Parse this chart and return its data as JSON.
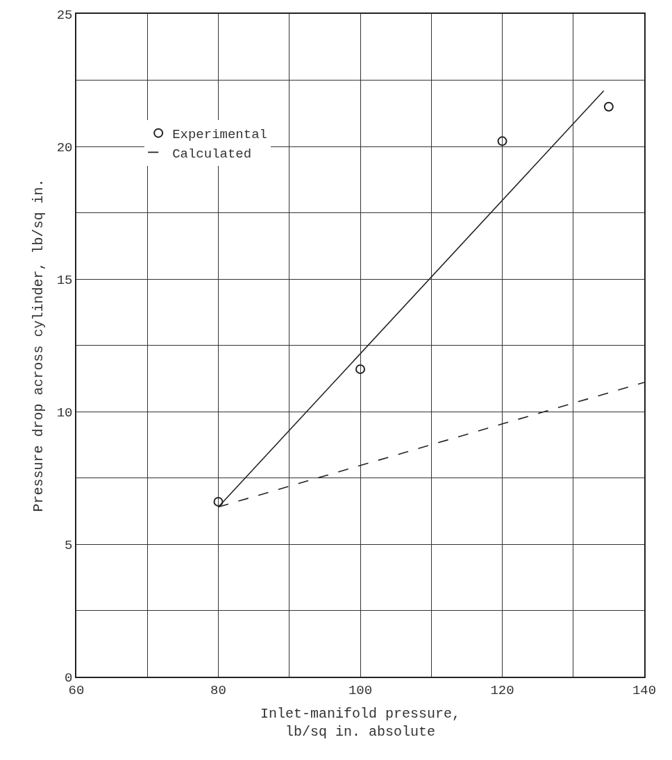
{
  "chart_data": {
    "type": "line",
    "xlabel": "Inlet-manifold pressure,\nlb/sq in. absolute",
    "ylabel": "Pressure drop across cylinder, lb/sq in.",
    "xlim": [
      60,
      140
    ],
    "xticks": [
      60,
      {
        "value": 70,
        "label": null
      },
      80,
      {
        "value": 90,
        "label": null
      },
      100,
      {
        "value": 110,
        "label": null
      },
      120,
      {
        "value": 130,
        "label": null
      },
      140
    ],
    "ylim": [
      0,
      25
    ],
    "yticks": [
      0,
      {
        "value": 2.5,
        "label": null
      },
      5,
      {
        "value": 7.5,
        "label": null
      },
      10,
      {
        "value": 12.5,
        "label": null
      },
      15,
      {
        "value": 17.5,
        "label": null
      },
      20,
      {
        "value": 22.5,
        "label": null
      },
      25
    ],
    "grid": true,
    "legend": "top left",
    "series": [
      {
        "name": "Experimental",
        "type": "scatter",
        "marker": "circle",
        "color": "#222222",
        "x": [
          80,
          100,
          120,
          135
        ],
        "values": [
          6.6,
          11.6,
          20.2,
          21.5
        ]
      },
      {
        "marker": "none",
        "line_style": "solid",
        "color": "#222222",
        "x": [
          80,
          134.3
        ],
        "values": [
          6.4,
          22.1
        ]
      },
      {
        "name": "Calculated",
        "marker": "none",
        "line_style": "dashed",
        "color": "#222222",
        "x": [
          80,
          140
        ],
        "values": [
          6.4,
          11.1
        ]
      }
    ]
  }
}
